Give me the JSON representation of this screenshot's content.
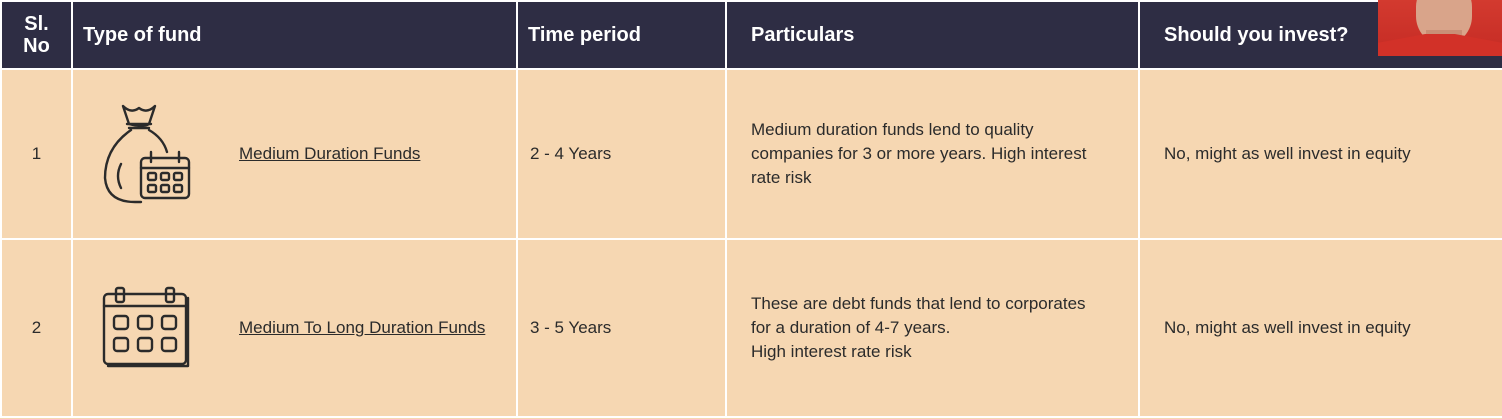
{
  "table": {
    "headers": {
      "sl_no_line1": "Sl.",
      "sl_no_line2": "No",
      "type_of_fund": "Type of fund",
      "time_period": "Time period",
      "particulars": "Particulars",
      "should_invest": "Should you invest?"
    },
    "rows": [
      {
        "sl_no": "1",
        "icon": "money-bag-calendar-icon",
        "fund_name": "Medium Duration Funds",
        "time_period": "2 - 4 Years",
        "particulars_lines": [
          "Medium duration funds lend to quality",
          "companies for 3 or more years. High interest",
          "rate risk"
        ],
        "should_invest": "No, might as well invest in equity"
      },
      {
        "sl_no": "2",
        "icon": "calendar-icon",
        "fund_name": "Medium To Long Duration Funds",
        "time_period": "3 - 5 Years",
        "particulars_lines": [
          "These are debt funds that lend to corporates",
          "for a duration of 4-7 years.",
          "High interest rate risk"
        ],
        "should_invest": "No, might as well invest in equity"
      }
    ]
  },
  "colors": {
    "header_bg": "#2e2d44",
    "row_bg": "#f6d7b2",
    "border": "#ffffff"
  },
  "webcam": {
    "icon": "presenter-webcam-thumbnail"
  }
}
